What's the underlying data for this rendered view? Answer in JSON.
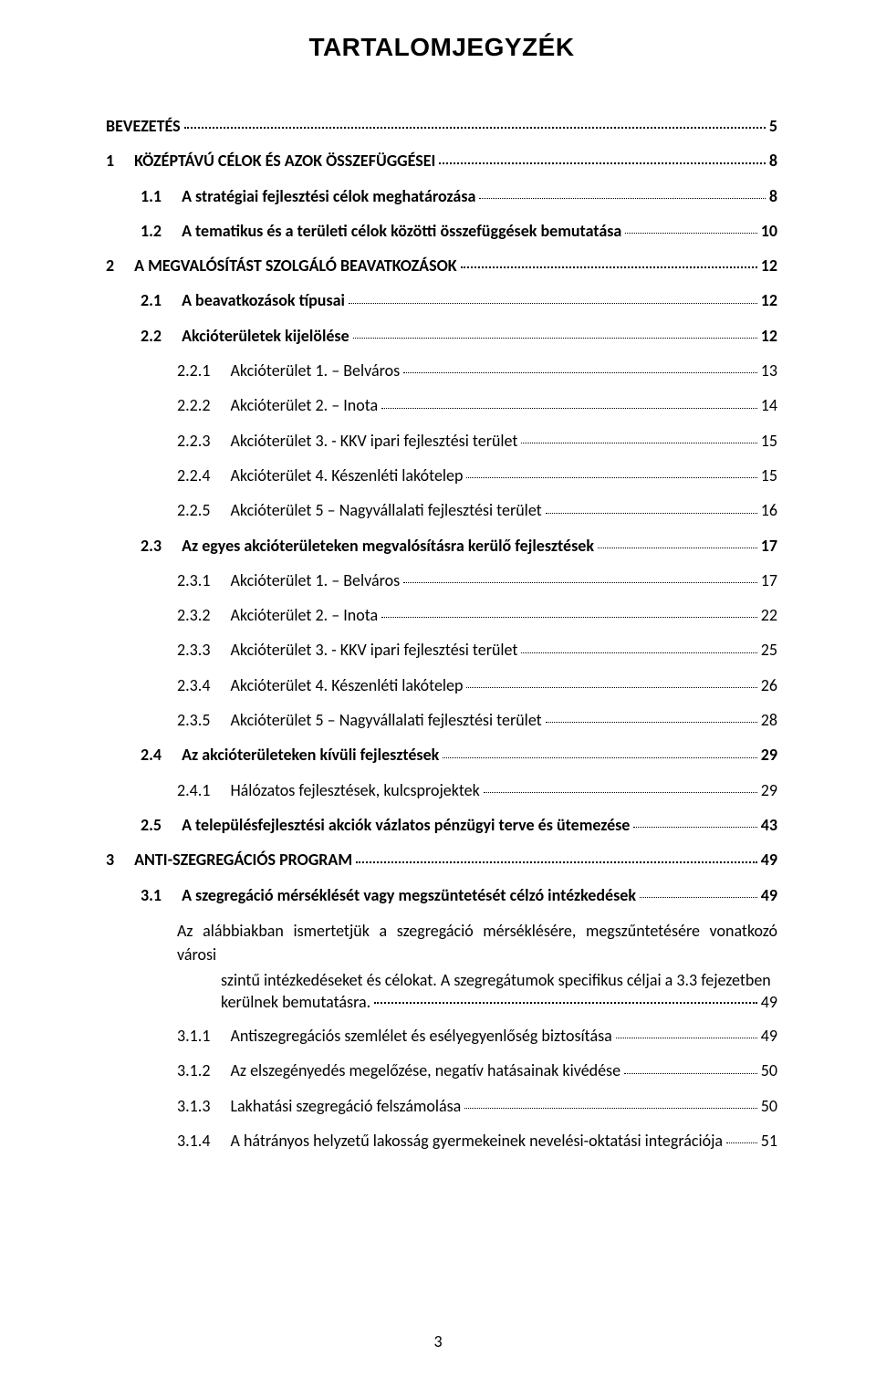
{
  "title": "TARTALOMJEGYZÉK",
  "pageNumber": "3",
  "entries": [
    {
      "level": 0,
      "num": "",
      "label": "BEVEZETÉS",
      "page": "5"
    },
    {
      "level": 1,
      "num": "1",
      "label": "KÖZÉPTÁVÚ CÉLOK ÉS AZOK ÖSSZEFÜGGÉSEI",
      "page": "8"
    },
    {
      "level": 2,
      "num": "1.1",
      "label": "A stratégiai fejlesztési célok meghatározása",
      "page": "8"
    },
    {
      "level": 2,
      "num": "1.2",
      "label": "A tematikus és a területi célok közötti összefüggések bemutatása",
      "page": "10"
    },
    {
      "level": 1,
      "num": "2",
      "label": "A MEGVALÓSÍTÁST SZOLGÁLÓ BEAVATKOZÁSOK",
      "page": "12"
    },
    {
      "level": 2,
      "num": "2.1",
      "label": "A beavatkozások típusai",
      "page": "12"
    },
    {
      "level": 2,
      "num": "2.2",
      "label": "Akcióterületek kijelölése",
      "page": "12"
    },
    {
      "level": 3,
      "num": "2.2.1",
      "label": "Akcióterület 1. – Belváros",
      "page": "13"
    },
    {
      "level": 3,
      "num": "2.2.2",
      "label": "Akcióterület 2. – Inota",
      "page": "14"
    },
    {
      "level": 3,
      "num": "2.2.3",
      "label": "Akcióterület 3.  -  KKV ipari fejlesztési terület",
      "page": "15"
    },
    {
      "level": 3,
      "num": "2.2.4",
      "label": "Akcióterület 4. Készenléti lakótelep",
      "page": "15"
    },
    {
      "level": 3,
      "num": "2.2.5",
      "label": "Akcióterület 5 – Nagyvállalati fejlesztési terület",
      "page": "16"
    },
    {
      "level": 2,
      "num": "2.3",
      "label": "Az egyes akcióterületeken megvalósításra kerülő fejlesztések",
      "page": "17"
    },
    {
      "level": 3,
      "num": "2.3.1",
      "label": "Akcióterület 1. – Belváros",
      "page": "17"
    },
    {
      "level": 3,
      "num": "2.3.2",
      "label": "Akcióterület 2. – Inota",
      "page": "22"
    },
    {
      "level": 3,
      "num": "2.3.3",
      "label": "Akcióterület 3.  -  KKV ipari fejlesztési terület",
      "page": "25"
    },
    {
      "level": 3,
      "num": "2.3.4",
      "label": "Akcióterület 4. Készenléti lakótelep",
      "page": "26"
    },
    {
      "level": 3,
      "num": "2.3.5",
      "label": "Akcióterület 5 – Nagyvállalati fejlesztési terület",
      "page": "28"
    },
    {
      "level": 2,
      "num": "2.4",
      "label": "Az akcióterületeken kívüli fejlesztések",
      "page": "29"
    },
    {
      "level": 3,
      "num": "2.4.1",
      "label": "Hálózatos fejlesztések, kulcsprojektek",
      "page": "29"
    },
    {
      "level": 2,
      "num": "2.5",
      "label": "A településfejlesztési akciók vázlatos pénzügyi terve és ütemezése",
      "page": "43"
    },
    {
      "level": 1,
      "num": "3",
      "label": "ANTI-SZEGREGÁCIÓS PROGRAM",
      "page": "49"
    },
    {
      "level": 2,
      "num": "3.1",
      "label": "A szegregáció mérséklését vagy megszüntetését célzó intézkedések",
      "page": "49"
    },
    {
      "level": "note",
      "num": "",
      "label_a": "Az alábbiakban ismertetjük a szegregáció mérséklésére, megszűntetésére vonatkozó városi",
      "label_b": "szintű intézkedéseket és célokat. A szegregátumok specifikus céljai a 3.3 fejezetben",
      "label_c": "kerülnek bemutatásra.",
      "page": "49"
    },
    {
      "level": 3,
      "num": "3.1.1",
      "label": "Antiszegregációs szemlélet és esélyegyenlőség biztosítása",
      "page": "49"
    },
    {
      "level": 3,
      "num": "3.1.2",
      "label": "Az elszegényedés megelőzése, negatív hatásainak kivédése",
      "page": "50"
    },
    {
      "level": 3,
      "num": "3.1.3",
      "label": "Lakhatási szegregáció felszámolása",
      "page": "50"
    },
    {
      "level": 3,
      "num": "3.1.4",
      "label": "A hátrányos helyzetű lakosság gyermekeinek nevelési-oktatási integrációja",
      "page": "51"
    }
  ]
}
